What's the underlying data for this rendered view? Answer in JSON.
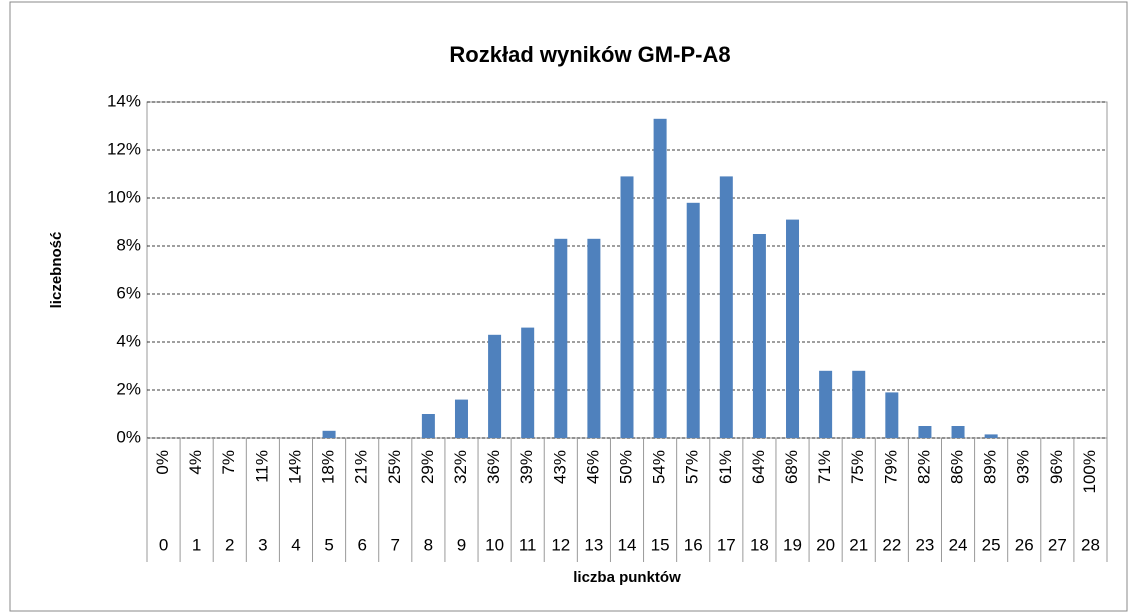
{
  "chart_data": {
    "type": "bar",
    "title": "Rozkład wyników GM-P-A8",
    "xlabel": "liczba punktów",
    "ylabel": "liczebność",
    "categories": [
      "0",
      "1",
      "2",
      "3",
      "4",
      "5",
      "6",
      "7",
      "8",
      "9",
      "10",
      "11",
      "12",
      "13",
      "14",
      "15",
      "16",
      "17",
      "18",
      "19",
      "20",
      "21",
      "22",
      "23",
      "24",
      "25",
      "26",
      "27",
      "28"
    ],
    "category_percent_labels": [
      "0%",
      "4%",
      "7%",
      "11%",
      "14%",
      "18%",
      "21%",
      "25%",
      "29%",
      "32%",
      "36%",
      "39%",
      "43%",
      "46%",
      "50%",
      "54%",
      "57%",
      "61%",
      "64%",
      "68%",
      "71%",
      "75%",
      "79%",
      "82%",
      "86%",
      "89%",
      "93%",
      "96%",
      "100%"
    ],
    "values": [
      0,
      0,
      0,
      0,
      0,
      0.3,
      0,
      0,
      1.0,
      1.6,
      4.3,
      4.6,
      8.3,
      8.3,
      10.9,
      13.3,
      9.8,
      10.9,
      8.5,
      9.1,
      2.8,
      2.8,
      1.9,
      0.5,
      0.5,
      0.15,
      0,
      0,
      0
    ],
    "color": "#4f81bd",
    "ylim": [
      0,
      14
    ],
    "yticks": [
      {
        "value": 0,
        "label": "0%"
      },
      {
        "value": 2,
        "label": "2%"
      },
      {
        "value": 4,
        "label": "4%"
      },
      {
        "value": 6,
        "label": "6%"
      },
      {
        "value": 8,
        "label": "8%"
      },
      {
        "value": 10,
        "label": "10%"
      },
      {
        "value": 12,
        "label": "12%"
      },
      {
        "value": 14,
        "label": "14%"
      }
    ],
    "grid": true
  }
}
